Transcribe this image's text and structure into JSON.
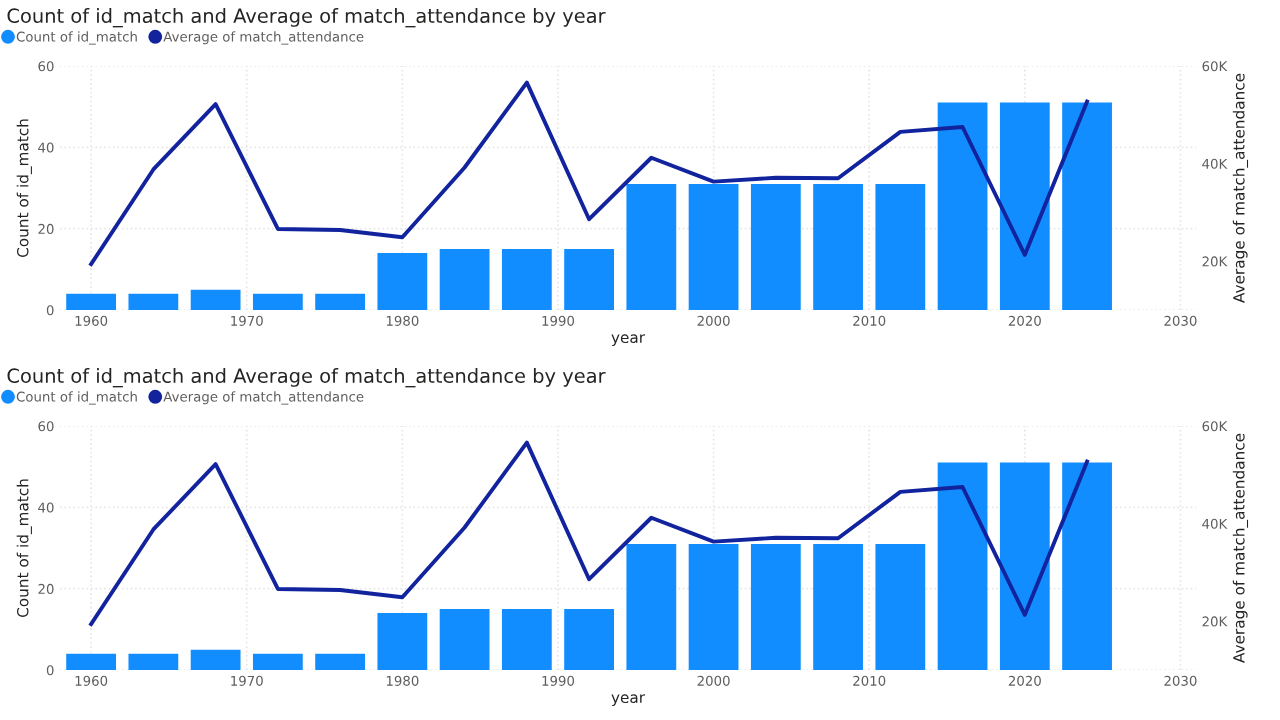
{
  "chart_data": [
    {
      "type": "bar",
      "title": "Count of id_match and Average of match_attendance by year",
      "xlabel": "year",
      "ylabel": "Count of id_match",
      "y2label": "Average of match_attendance",
      "x": [
        1960,
        1964,
        1968,
        1972,
        1976,
        1980,
        1984,
        1988,
        1992,
        1996,
        2000,
        2004,
        2008,
        2012,
        2016,
        2020,
        2024
      ],
      "series": [
        {
          "name": "Count of id_match",
          "color": "#118dff",
          "values": [
            4,
            4,
            5,
            4,
            4,
            14,
            15,
            15,
            15,
            31,
            31,
            31,
            31,
            31,
            51,
            51,
            51
          ]
        },
        {
          "name": "Average of match_attendance",
          "type": "line",
          "axis": "y2",
          "color": "#12239e",
          "values": [
            19400,
            38800,
            52200,
            26600,
            26400,
            24900,
            39200,
            56600,
            28600,
            41200,
            36300,
            37100,
            37000,
            46500,
            47500,
            21300,
            52700
          ]
        }
      ],
      "xlim": [
        1958,
        2031
      ],
      "xticks": [
        1960,
        1970,
        1980,
        1990,
        2000,
        2010,
        2020,
        2030
      ],
      "ylim": [
        0,
        60
      ],
      "yticks": [
        0,
        20,
        40,
        60
      ],
      "y2lim": [
        10000,
        60000
      ],
      "y2ticks": [
        {
          "value": 20000,
          "label": "20K"
        },
        {
          "value": 40000,
          "label": "40K"
        },
        {
          "value": 60000,
          "label": "60K"
        }
      ],
      "grid": true,
      "legend": "top left",
      "marker": "none",
      "line_style": "solid"
    },
    {
      "type": "bar",
      "title": "Count of id_match and Average of match_attendance by year",
      "xlabel": "year",
      "ylabel": "Count of id_match",
      "y2label": "Average of match_attendance",
      "x": [
        1960,
        1964,
        1968,
        1972,
        1976,
        1980,
        1984,
        1988,
        1992,
        1996,
        2000,
        2004,
        2008,
        2012,
        2016,
        2020,
        2024
      ],
      "series": [
        {
          "name": "Count of id_match",
          "color": "#118dff",
          "values": [
            4,
            4,
            5,
            4,
            4,
            14,
            15,
            15,
            15,
            31,
            31,
            31,
            31,
            31,
            51,
            51,
            51
          ]
        },
        {
          "name": "Average of match_attendance",
          "type": "line",
          "axis": "y2",
          "color": "#12239e",
          "values": [
            19400,
            38800,
            52200,
            26600,
            26400,
            24900,
            39200,
            56600,
            28600,
            41200,
            36300,
            37100,
            37000,
            46500,
            47500,
            21300,
            52700
          ]
        }
      ],
      "xlim": [
        1958,
        2031
      ],
      "xticks": [
        1960,
        1970,
        1980,
        1990,
        2000,
        2010,
        2020,
        2030
      ],
      "ylim": [
        0,
        60
      ],
      "yticks": [
        0,
        20,
        40,
        60
      ],
      "y2lim": [
        10000,
        60000
      ],
      "y2ticks": [
        {
          "value": 20000,
          "label": "20K"
        },
        {
          "value": 40000,
          "label": "40K"
        },
        {
          "value": 60000,
          "label": "60K"
        }
      ],
      "grid": true,
      "legend": "top left",
      "marker": "none",
      "line_style": "solid"
    }
  ]
}
